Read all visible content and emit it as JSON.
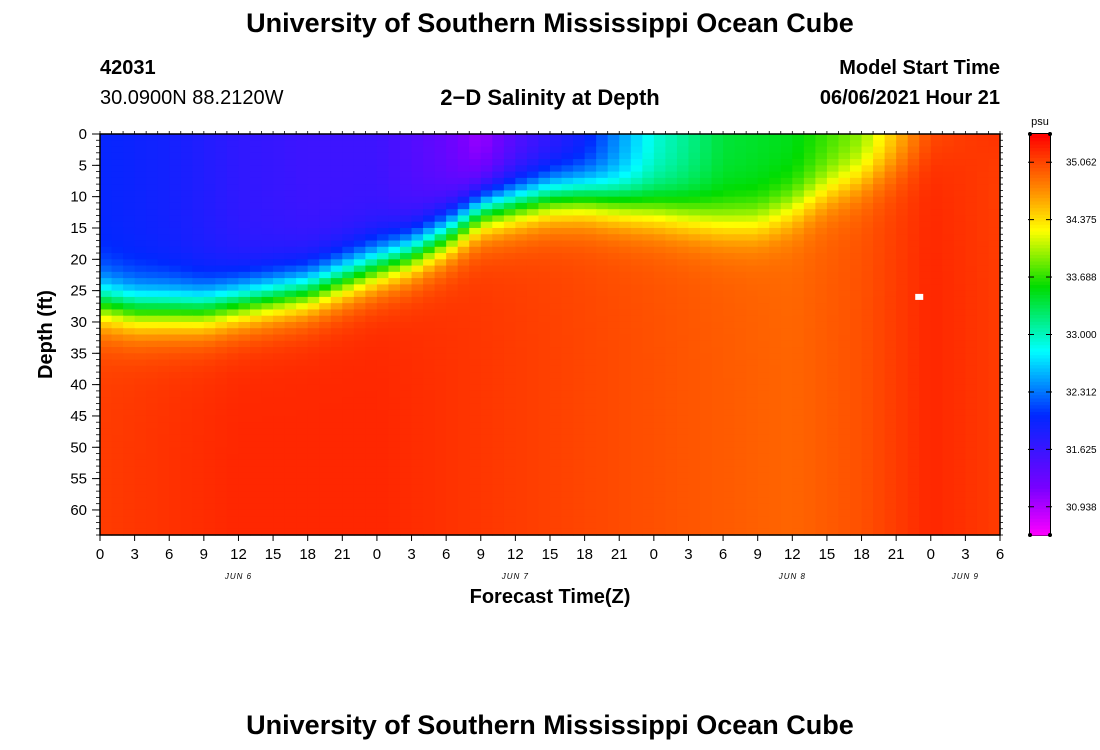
{
  "header": {
    "title": "University of Southern Mississippi Ocean Cube",
    "station_id": "42031",
    "location": "30.0900N  88.2120W",
    "plot_title": "2−D Salinity at Depth",
    "model_start_label": "Model Start Time",
    "model_start_value": "06/06/2021 Hour 21"
  },
  "footer": {
    "title": "University of Southern Mississippi Ocean Cube"
  },
  "chart_data": {
    "type": "heatmap",
    "title": "2−D Salinity at Depth",
    "xlabel": "Forecast Time(Z)",
    "ylabel": "Depth (ft)",
    "x_unit": "hours since Jun 6 00Z",
    "xlim": [
      0,
      78
    ],
    "ylim": [
      0,
      64
    ],
    "x_ticks": [
      0,
      3,
      6,
      9,
      12,
      15,
      18,
      21,
      24,
      27,
      30,
      33,
      36,
      39,
      42,
      45,
      48,
      51,
      54,
      57,
      60,
      63,
      66,
      69,
      72,
      75,
      78
    ],
    "x_tick_labels": [
      "0",
      "3",
      "6",
      "9",
      "12",
      "15",
      "18",
      "21",
      "0",
      "3",
      "6",
      "9",
      "12",
      "15",
      "18",
      "21",
      "0",
      "3",
      "6",
      "9",
      "12",
      "15",
      "18",
      "21",
      "0",
      "3",
      "6"
    ],
    "day_labels": [
      {
        "x": 12,
        "label": "JUN 6"
      },
      {
        "x": 36,
        "label": "JUN 7"
      },
      {
        "x": 60,
        "label": "JUN 8"
      },
      {
        "x": 75,
        "label": "JUN 9"
      }
    ],
    "y_ticks": [
      0,
      5,
      10,
      15,
      20,
      25,
      30,
      35,
      40,
      45,
      50,
      55,
      60
    ],
    "y_tick_labels": [
      "0",
      "5",
      "10",
      "15",
      "20",
      "25",
      "30",
      "35",
      "40",
      "45",
      "50",
      "55",
      "60"
    ],
    "marker": {
      "x": 71,
      "depth": 26
    },
    "colorbar": {
      "unit": "psu",
      "min": 30.6,
      "max": 35.4,
      "ticks": [
        35.062,
        34.375,
        33.688,
        33.0,
        32.312,
        31.625,
        30.938
      ],
      "tick_labels": [
        "35.062",
        "34.375",
        "33.688",
        "33.000",
        "32.312",
        "31.625",
        "30.938"
      ]
    },
    "halocline_depth_ft": {
      "hours": [
        0,
        3,
        6,
        9,
        12,
        15,
        18,
        21,
        24,
        27,
        30,
        33,
        36,
        39,
        42,
        45,
        48,
        51,
        54,
        57,
        60,
        63,
        66,
        69,
        72,
        75,
        78
      ],
      "values": [
        27,
        28,
        28,
        28,
        27,
        26,
        25,
        23,
        21,
        19,
        16,
        12,
        11,
        10,
        10,
        11,
        12,
        13,
        14,
        14,
        12,
        9,
        7,
        5,
        3,
        2,
        1
      ]
    },
    "surface_min_psu": {
      "hours": [
        0,
        6,
        12,
        18,
        24,
        30,
        33,
        36,
        42,
        48,
        54,
        60,
        66,
        72,
        78
      ],
      "values": [
        32.0,
        31.9,
        31.7,
        31.6,
        31.6,
        31.3,
        31.0,
        31.4,
        31.9,
        32.9,
        33.4,
        33.5,
        33.9,
        35.0,
        35.2
      ]
    },
    "deep_salinity_psu": {
      "hours": [
        0,
        12,
        24,
        36,
        48,
        60,
        66,
        72,
        78
      ],
      "values": [
        35.1,
        35.2,
        35.2,
        35.1,
        35.0,
        34.9,
        35.0,
        35.2,
        35.1
      ]
    }
  }
}
